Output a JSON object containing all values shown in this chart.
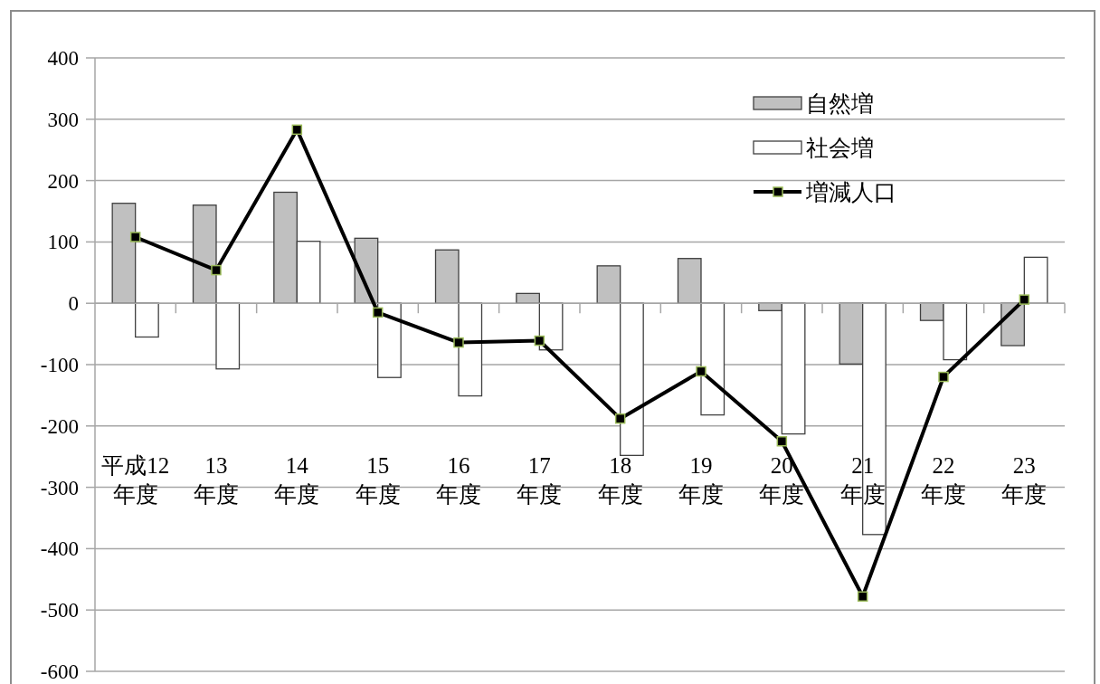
{
  "chart_data": {
    "type": "bar",
    "categories": [
      "平成12\n年度",
      "13\n年度",
      "14\n年度",
      "15\n年度",
      "16\n年度",
      "17\n年度",
      "18\n年度",
      "19\n年度",
      "20\n年度",
      "21\n年度",
      "22\n年度",
      "23\n年度"
    ],
    "series": [
      {
        "name": "自然増",
        "color": "#c0c0c0",
        "values": [
          163,
          160,
          181,
          106,
          87,
          16,
          61,
          73,
          -12,
          -99,
          -28,
          -69
        ]
      },
      {
        "name": "社会増",
        "color": "#ffffff",
        "values": [
          -55,
          -107,
          101,
          -121,
          -151,
          -76,
          -248,
          -182,
          -213,
          -377,
          -92,
          75
        ]
      },
      {
        "name": "増減人口",
        "type": "line",
        "color": "#000000",
        "marker": "square",
        "values": [
          108,
          54,
          283,
          -15,
          -64,
          -61,
          -188,
          -111,
          -225,
          -478,
          -120,
          6
        ]
      }
    ],
    "ylim": [
      -600,
      400
    ],
    "yticks": [
      400,
      300,
      200,
      100,
      0,
      -100,
      -200,
      -300,
      -400,
      -500,
      -600
    ],
    "grid": "y",
    "legend": "top right"
  }
}
